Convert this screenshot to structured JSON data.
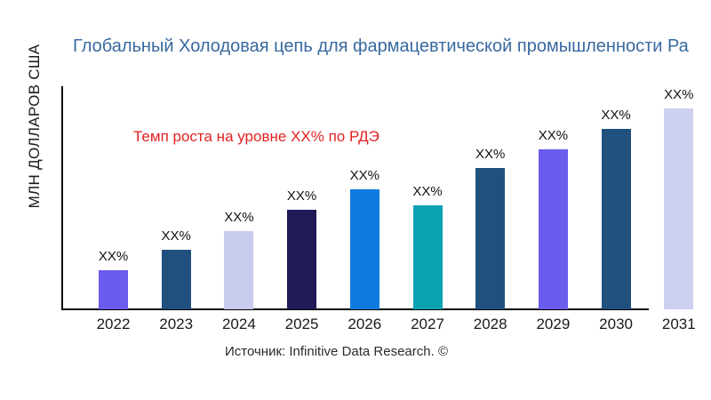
{
  "page": {
    "title": "Глобальный Холодовая цепь для фармацевтической промышленности Ра",
    "title_color": "#38699f",
    "y_axis_label": "МЛН ДОЛЛАРОВ США",
    "annotation_text": "Темп роста на уровне XX% по РДЭ",
    "annotation_color": "#e32222",
    "source": "Источник: Infinitive Data Research. ©",
    "axis_color": "#000000",
    "background_color": "#ffffff"
  },
  "chart_data": {
    "type": "bar",
    "title": "Глобальный Холодовая цепь для фармацевтической промышленности Ра",
    "xlabel": "",
    "ylabel": "МЛН ДОЛЛАРОВ США",
    "categories": [
      "2022",
      "2023",
      "2024",
      "2025",
      "2026",
      "2027",
      "2028",
      "2029",
      "2030",
      "2031"
    ],
    "values": [
      19.5,
      29.6,
      38.9,
      49.6,
      59.7,
      51.8,
      70.4,
      79.6,
      89.8,
      100
    ],
    "values_note": "relative bar heights in % of tallest bar (2031); actual market values are masked as XX% placeholders in the figure",
    "value_labels": [
      "XX%",
      "XX%",
      "XX%",
      "XX%",
      "XX%",
      "XX%",
      "XX%",
      "XX%",
      "XX%",
      "XX%"
    ],
    "bar_colors": [
      "#6a5cec",
      "#20517e",
      "#c9cbec",
      "#201a57",
      "#0f7bde",
      "#09a2b3",
      "#20517e",
      "#6a5cec",
      "#20517e",
      "#cdd0ee"
    ],
    "ylim": [
      0,
      100
    ],
    "grid": false,
    "legend": false,
    "annotation": {
      "text": "Темп роста на уровне XX% по РДЭ",
      "color": "#e32222"
    },
    "source": "Источник: Infinitive Data Research. ©"
  }
}
